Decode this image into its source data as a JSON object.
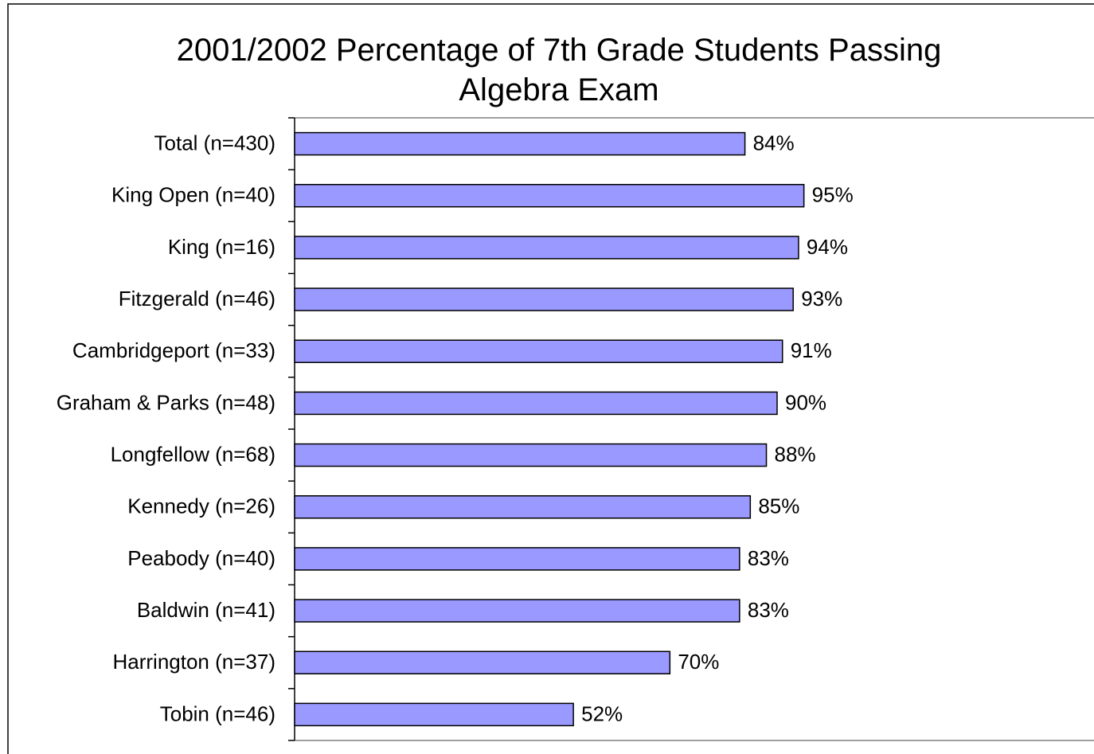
{
  "chart_data": {
    "type": "bar",
    "orientation": "horizontal",
    "title": "2001/2002 Percentage of 7th Grade Students Passing Algebra Exam",
    "categories": [
      "Total (n=430)",
      "King Open (n=40)",
      "King (n=16)",
      "Fitzgerald (n=46)",
      "Cambridgeport (n=33)",
      "Graham & Parks (n=48)",
      "Longfellow (n=68)",
      "Kennedy (n=26)",
      "Peabody (n=40)",
      "Baldwin (n=41)",
      "Harrington (n=37)",
      "Tobin (n=46)"
    ],
    "values": [
      84,
      95,
      94,
      93,
      91,
      90,
      88,
      85,
      83,
      83,
      70,
      52
    ],
    "value_labels": [
      "84%",
      "95%",
      "94%",
      "93%",
      "91%",
      "90%",
      "88%",
      "85%",
      "83%",
      "83%",
      "70%",
      "52%"
    ],
    "color": "#9999ff",
    "xlim": [
      0,
      150
    ]
  }
}
